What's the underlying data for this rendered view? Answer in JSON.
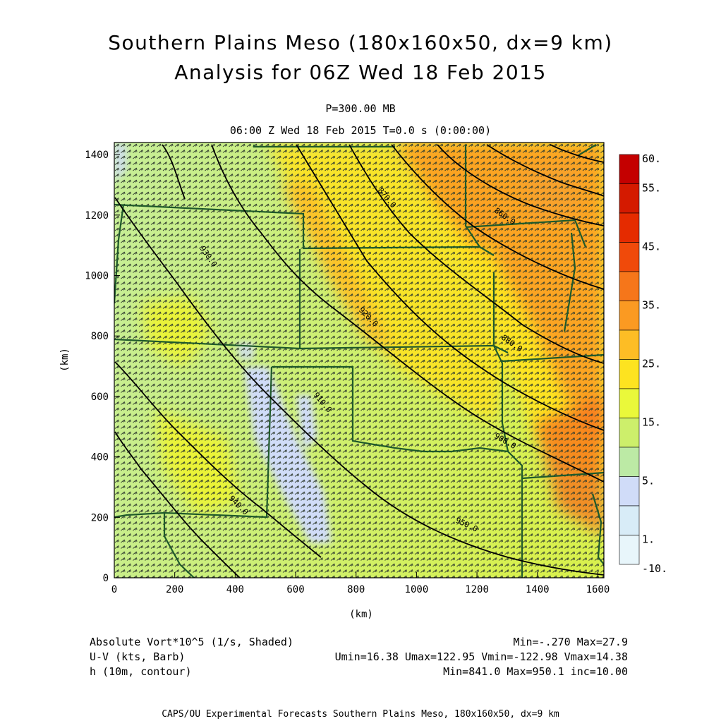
{
  "title": {
    "line1": "Southern Plains Meso (180x160x50, dx=9 km)",
    "line2": "Analysis for 06Z Wed 18 Feb 2015"
  },
  "subtitle": {
    "level": "P=300.00 MB",
    "time": "06:00 Z Wed 18 Feb 2015    T=0.0 s (0:00:00)"
  },
  "axes": {
    "x_label": "(km)",
    "y_label": "(km)",
    "x_ticks": [
      "0",
      "200",
      "400",
      "600",
      "800",
      "1000",
      "1200",
      "1400",
      "1600"
    ],
    "y_ticks": [
      "0",
      "200",
      "400",
      "600",
      "800",
      "1000",
      "1200",
      "1400"
    ]
  },
  "colorbar": {
    "labels": [
      "60.",
      "55.",
      "45.",
      "35.",
      "25.",
      "15.",
      "5.",
      "1.",
      "-10."
    ],
    "colors": [
      "#c40000",
      "#d41a00",
      "#e52b00",
      "#f04a0a",
      "#f6761a",
      "#fb9a22",
      "#fdbd25",
      "#fde320",
      "#eaf83a",
      "#cdef6b",
      "#bceaa5",
      "#d0dcf8",
      "#d8ecf7",
      "#e8f6fb"
    ]
  },
  "contour_labels": [
    "850.0",
    "860.0",
    "870.0",
    "880.0",
    "890.0",
    "900.0",
    "910.0",
    "920.0",
    "930.0",
    "940.0",
    "950.0"
  ],
  "footer": {
    "field1_name": "Absolute Vort*10^5 (1/s, Shaded)",
    "field1_stats": "Min=-.270 Max=27.9",
    "field2_name": "U-V (kts, Barb)",
    "field2_stats": "Umin=16.38 Umax=122.95 Vmin=-122.98 Vmax=14.38",
    "field3_name": "h (10m, contour)",
    "field3_stats": "Min=841.0 Max=950.1 inc=10.00",
    "credit": "CAPS/OU Experimental Forecasts  Southern Plains Meso, 180x160x50, dx=9 km"
  },
  "colors": {
    "boundary": "#1f5a2a",
    "contour": "#000000",
    "barb": "#333333"
  }
}
